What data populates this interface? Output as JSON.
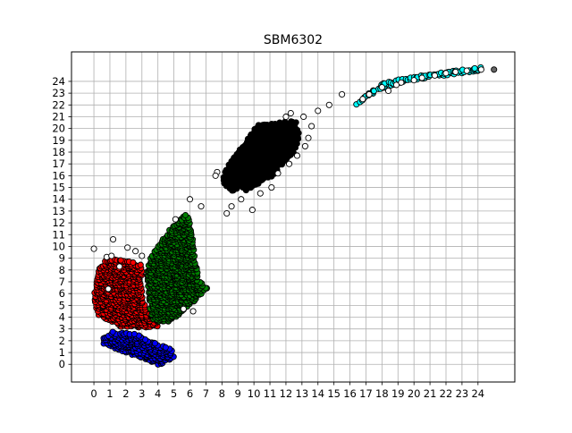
{
  "chart_data": {
    "type": "scatter",
    "title": "SBM6302",
    "xlabel": "",
    "ylabel": "",
    "xlim": [
      -1.4,
      26.3
    ],
    "ylim": [
      -1.5,
      26.5
    ],
    "grid": true,
    "x_ticks": [
      0,
      1,
      2,
      3,
      4,
      5,
      6,
      7,
      8,
      9,
      10,
      11,
      12,
      13,
      14,
      15,
      16,
      17,
      18,
      19,
      20,
      21,
      22,
      23,
      24
    ],
    "y_ticks": [
      0,
      1,
      2,
      3,
      4,
      5,
      6,
      7,
      8,
      9,
      10,
      11,
      12,
      13,
      14,
      15,
      16,
      17,
      18,
      19,
      20,
      21,
      22,
      23,
      24
    ],
    "clusters": [
      {
        "color": "#0000ff",
        "polygon": [
          [
            0.6,
            2.3
          ],
          [
            1.2,
            2.8
          ],
          [
            2.6,
            2.6
          ],
          [
            3.8,
            1.8
          ],
          [
            4.8,
            1.3
          ],
          [
            5.1,
            0.7
          ],
          [
            4.6,
            0.3
          ],
          [
            4.0,
            -0.1
          ],
          [
            3.3,
            0.4
          ],
          [
            2.4,
            0.8
          ],
          [
            1.4,
            1.3
          ],
          [
            0.5,
            1.8
          ]
        ]
      },
      {
        "color": "#ff0000",
        "polygon": [
          [
            0.0,
            5.8
          ],
          [
            0.3,
            8.0
          ],
          [
            0.6,
            8.8
          ],
          [
            1.5,
            8.9
          ],
          [
            3.0,
            8.5
          ],
          [
            3.0,
            6.0
          ],
          [
            3.3,
            4.5
          ],
          [
            4.1,
            3.7
          ],
          [
            4.0,
            3.2
          ],
          [
            3.0,
            3.1
          ],
          [
            1.5,
            3.2
          ],
          [
            0.2,
            4.2
          ]
        ]
      },
      {
        "color": "#008000",
        "polygon": [
          [
            3.6,
            3.8
          ],
          [
            3.4,
            5.5
          ],
          [
            3.3,
            8.5
          ],
          [
            4.0,
            10.0
          ],
          [
            4.6,
            11.2
          ],
          [
            5.1,
            12.0
          ],
          [
            5.8,
            12.8
          ],
          [
            6.1,
            11.5
          ],
          [
            6.3,
            9.0
          ],
          [
            6.6,
            7.0
          ],
          [
            7.1,
            6.5
          ],
          [
            6.2,
            5.2
          ],
          [
            5.6,
            4.6
          ],
          [
            5.0,
            3.7
          ],
          [
            4.2,
            3.5
          ]
        ]
      },
      {
        "color": "#000000",
        "polygon": [
          [
            8.1,
            16.0
          ],
          [
            8.6,
            17.5
          ],
          [
            9.3,
            18.5
          ],
          [
            10.2,
            20.3
          ],
          [
            11.5,
            20.5
          ],
          [
            12.6,
            20.7
          ],
          [
            12.9,
            19.5
          ],
          [
            12.5,
            18.0
          ],
          [
            11.8,
            17.0
          ],
          [
            11.2,
            16.0
          ],
          [
            10.5,
            15.5
          ],
          [
            9.9,
            15.0
          ],
          [
            9.6,
            14.7
          ],
          [
            9.1,
            15.0
          ],
          [
            8.6,
            14.6
          ],
          [
            8.1,
            15.2
          ]
        ]
      },
      {
        "color": "#00ffff",
        "polygon": [
          [
            16.3,
            22.0
          ],
          [
            17.2,
            23.0
          ],
          [
            18.0,
            23.9
          ],
          [
            19.5,
            24.3
          ],
          [
            21.0,
            24.6
          ],
          [
            22.5,
            24.9
          ],
          [
            24.3,
            25.2
          ],
          [
            24.2,
            24.9
          ],
          [
            22.5,
            24.6
          ],
          [
            21.0,
            24.3
          ],
          [
            19.5,
            24.0
          ],
          [
            18.0,
            23.4
          ],
          [
            17.0,
            22.6
          ],
          [
            16.4,
            21.8
          ]
        ]
      }
    ],
    "noise_points": [
      [
        0.0,
        9.8
      ],
      [
        1.2,
        10.6
      ],
      [
        0.8,
        9.1
      ],
      [
        1.1,
        9.2
      ],
      [
        2.1,
        9.9
      ],
      [
        2.6,
        9.6
      ],
      [
        3.0,
        9.2
      ],
      [
        1.6,
        8.3
      ],
      [
        0.9,
        6.4
      ],
      [
        5.6,
        4.7
      ],
      [
        6.2,
        4.5
      ],
      [
        6.0,
        14.0
      ],
      [
        6.7,
        13.4
      ],
      [
        5.1,
        12.3
      ],
      [
        7.7,
        16.3
      ],
      [
        7.6,
        16.0
      ],
      [
        8.6,
        13.4
      ],
      [
        8.3,
        12.8
      ],
      [
        9.2,
        14.0
      ],
      [
        9.9,
        13.1
      ],
      [
        10.4,
        14.5
      ],
      [
        11.1,
        15.0
      ],
      [
        11.5,
        16.2
      ],
      [
        12.2,
        17.0
      ],
      [
        12.7,
        17.7
      ],
      [
        13.2,
        18.5
      ],
      [
        13.4,
        19.2
      ],
      [
        13.6,
        20.2
      ],
      [
        13.1,
        21.0
      ],
      [
        12.3,
        21.3
      ],
      [
        12.0,
        21.0
      ],
      [
        14.0,
        21.5
      ],
      [
        14.7,
        22.0
      ],
      [
        15.5,
        22.9
      ],
      [
        16.8,
        22.5
      ],
      [
        17.2,
        22.9
      ],
      [
        18.0,
        23.5
      ],
      [
        18.4,
        23.2
      ],
      [
        18.9,
        23.7
      ],
      [
        19.2,
        23.9
      ],
      [
        20.0,
        24.1
      ],
      [
        20.5,
        24.3
      ],
      [
        21.3,
        24.5
      ],
      [
        22.0,
        24.7
      ],
      [
        22.6,
        24.8
      ],
      [
        23.3,
        24.9
      ],
      [
        24.2,
        25.0
      ]
    ],
    "outlier_points": [
      [
        25.0,
        25.0
      ]
    ]
  }
}
